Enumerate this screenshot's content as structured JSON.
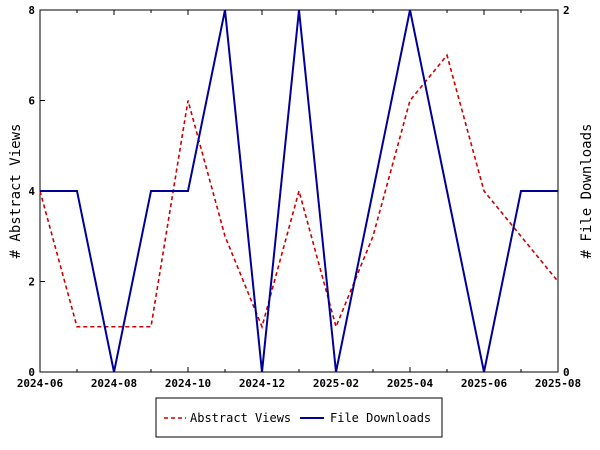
{
  "chart_data": {
    "type": "line",
    "x": [
      "2024-06",
      "2024-07",
      "2024-08",
      "2024-09",
      "2024-10",
      "2024-11",
      "2024-12",
      "2025-01",
      "2025-02",
      "2025-03",
      "2025-04",
      "2025-05",
      "2025-06",
      "2025-07",
      "2025-08"
    ],
    "x_tick_labels": [
      "2024-06",
      "2024-08",
      "2024-10",
      "2024-12",
      "2025-02",
      "2025-04",
      "2025-06",
      "2025-08"
    ],
    "ylabel_left": "# Abstract Views",
    "ylabel_right": "# File Downloads",
    "ylim_left": [
      0,
      8
    ],
    "ylim_right": [
      0,
      2
    ],
    "y_left_ticks": [
      "0",
      "2",
      "4",
      "6",
      "8"
    ],
    "y_right_ticks": [
      "0",
      "2"
    ],
    "series": [
      {
        "name": "Abstract Views",
        "axis": "left",
        "color": "#cc0000",
        "style": "dashed",
        "values": [
          4,
          1,
          1,
          1,
          6,
          3,
          1,
          4,
          1,
          3,
          6,
          7,
          4,
          3,
          2
        ]
      },
      {
        "name": "File Downloads",
        "axis": "right",
        "color": "#000099",
        "style": "solid",
        "values": [
          1,
          1,
          0,
          1,
          1,
          2,
          0,
          2,
          0,
          1,
          2,
          1,
          0,
          1,
          1
        ]
      }
    ],
    "legend_position": "bottom-center",
    "grid": false
  }
}
